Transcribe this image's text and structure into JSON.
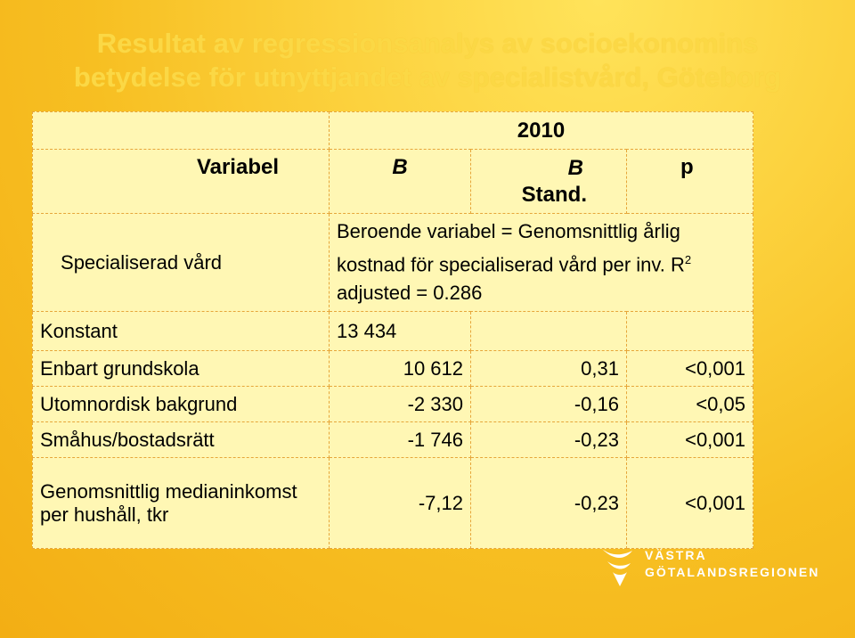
{
  "title": {
    "line1": "Resultat av regressionsanalys av socioekonomins",
    "line2": "betydelse för utnyttjandet av specialistvård, Göteborg"
  },
  "table": {
    "year": "2010",
    "col_variabel": "Variabel",
    "col_b": "B",
    "col_b_stand": "B",
    "col_b_stand_sub": "Stand.",
    "col_p": "p",
    "dependent_label": "Specialiserad vård",
    "dependent_desc": "Beroende variabel = Genomsnittlig årlig kostnad för specialiserad vård per inv. R",
    "dependent_sup": "2",
    "dependent_tail": " adjusted = 0.286",
    "constant_label": "Konstant",
    "constant_b": "13 434",
    "rows": [
      {
        "label": "Enbart grundskola",
        "b": "10 612",
        "b_stand": "0,31",
        "p": "<0,001"
      },
      {
        "label": "Utomnordisk bakgrund",
        "b": "-2 330",
        "b_stand": "-0,16",
        "p": "<0,05"
      },
      {
        "label": "Småhus/bostadsrätt",
        "b": "-1 746",
        "b_stand": "-0,23",
        "p": "<0,001"
      },
      {
        "label": "Genomsnittlig medianinkomst per hushåll, tkr",
        "b": "-7,12",
        "b_stand": "-0,23",
        "p": "<0,001"
      }
    ]
  },
  "logo": {
    "line1": "VÄSTRA",
    "line2": "GÖTALANDSREGIONEN",
    "icon": "vgr-logo-icon"
  }
}
